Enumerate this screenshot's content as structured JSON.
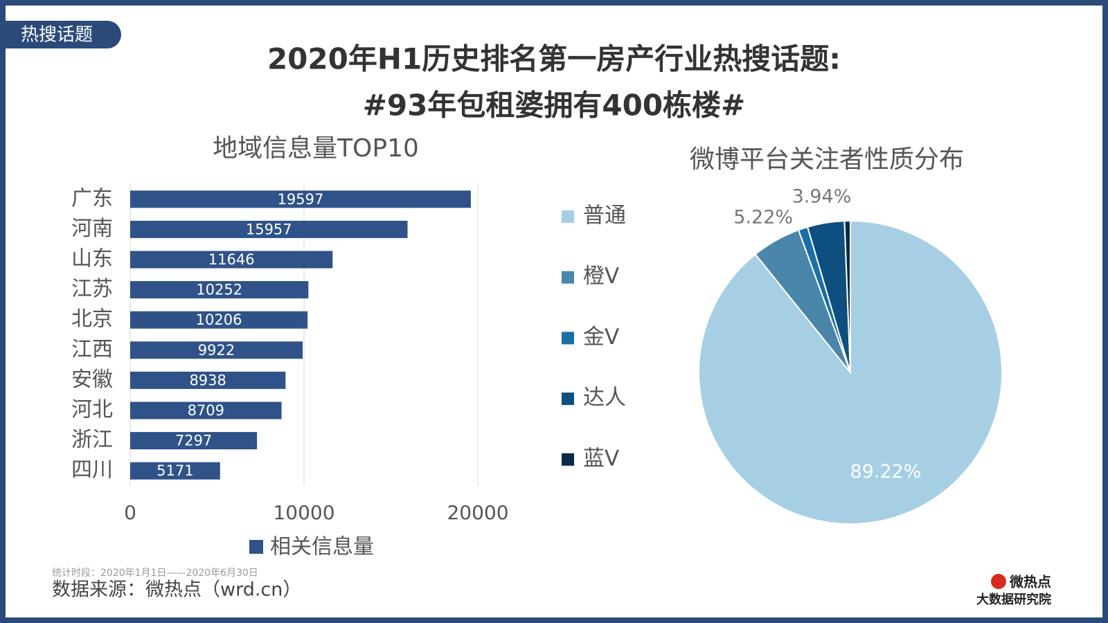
{
  "badge": "热搜话题",
  "title_lines": [
    "2020年H1历史排名第一房产行业热搜话题:",
    "#93年包租婆拥有400栋楼#"
  ],
  "footer": {
    "period": "统计时段：2020年1月1日——2020年6月30日",
    "source": "数据来源：微热点（wrd.cn）"
  },
  "logo": {
    "name": "微热点",
    "subtitle": "大数据研究院"
  },
  "chart_data": [
    {
      "type": "bar",
      "orientation": "horizontal",
      "title": "地域信息量TOP10",
      "categories": [
        "广东",
        "河南",
        "山东",
        "江苏",
        "北京",
        "江西",
        "安徽",
        "河北",
        "浙江",
        "四川"
      ],
      "series": [
        {
          "name": "相关信息量",
          "color": "#2f5288",
          "values": [
            19597,
            15957,
            11646,
            10252,
            10206,
            9922,
            8938,
            8709,
            7297,
            5171
          ]
        }
      ],
      "xlim": [
        0,
        20000
      ],
      "xticks": [
        0,
        10000,
        20000
      ],
      "grid": true,
      "legend": "bottom"
    },
    {
      "type": "pie",
      "title": "微博平台关注者性质分布",
      "categories": [
        "普通",
        "橙V",
        "金V",
        "达人",
        "蓝V"
      ],
      "values": [
        89.22,
        5.22,
        1.0,
        3.94,
        0.62
      ],
      "value_labels": [
        "89.22%",
        "5.22%",
        null,
        "3.94%",
        null
      ],
      "colors": [
        "#a6cfe4",
        "#4a86aa",
        "#1a6fa6",
        "#0d5080",
        "#0b2a4a"
      ],
      "legend": "left"
    }
  ]
}
